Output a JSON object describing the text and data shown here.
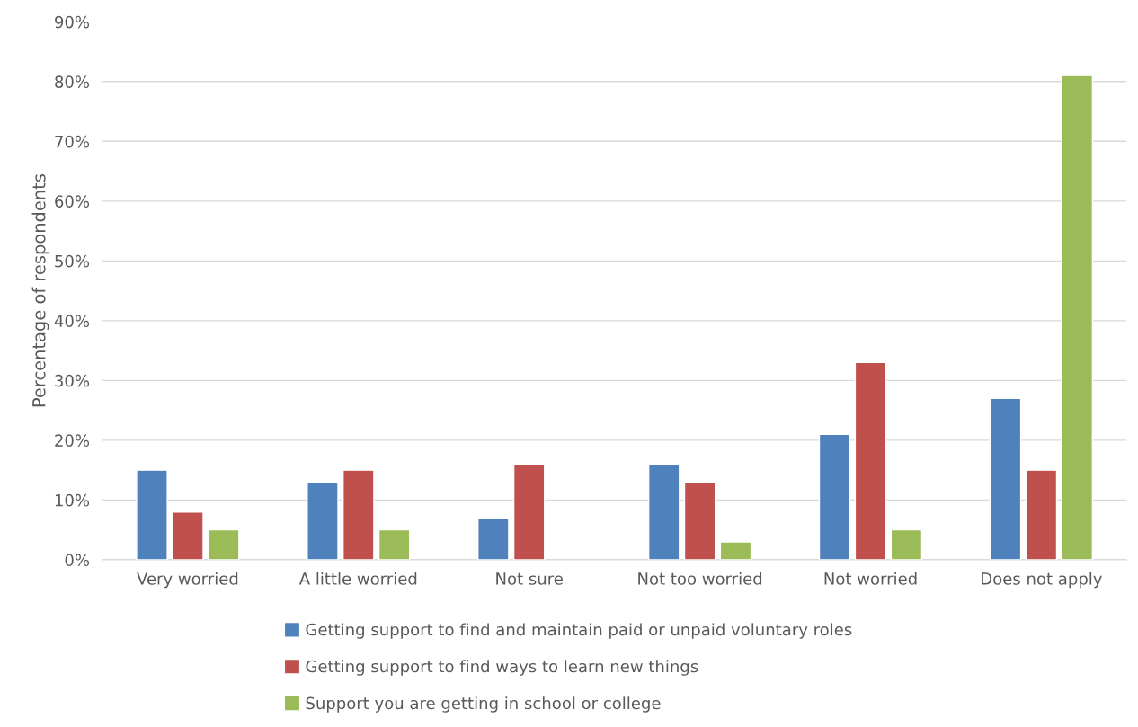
{
  "chart_data": {
    "type": "bar",
    "ylabel": "Percentage of respondents",
    "categories": [
      "Very worried",
      "A little worried",
      "Not sure",
      "Not too worried",
      "Not worried",
      "Does not apply"
    ],
    "series": [
      {
        "name": "Getting support to find and maintain paid or unpaid voluntary roles",
        "color": "#4f81bd",
        "values": [
          15,
          13,
          7,
          16,
          21,
          27
        ]
      },
      {
        "name": "Getting support to find ways to learn new things",
        "color": "#c0504d",
        "values": [
          8,
          15,
          16,
          13,
          33,
          15
        ]
      },
      {
        "name": "Support you are getting in school or college",
        "color": "#9bbb59",
        "values": [
          5,
          5,
          null,
          3,
          5,
          81
        ]
      }
    ],
    "ylim": [
      0,
      90
    ],
    "yticks": [
      {
        "value": 0,
        "label": "0%"
      },
      {
        "value": 10,
        "label": "10%"
      },
      {
        "value": 20,
        "label": "20%"
      },
      {
        "value": 30,
        "label": "30%"
      },
      {
        "value": 40,
        "label": "40%"
      },
      {
        "value": 50,
        "label": "50%"
      },
      {
        "value": 60,
        "label": "60%"
      },
      {
        "value": 70,
        "label": "70%"
      },
      {
        "value": 80,
        "label": "80%"
      },
      {
        "value": 90,
        "label": "90%"
      }
    ],
    "grid": "y",
    "legend": "bottom"
  }
}
